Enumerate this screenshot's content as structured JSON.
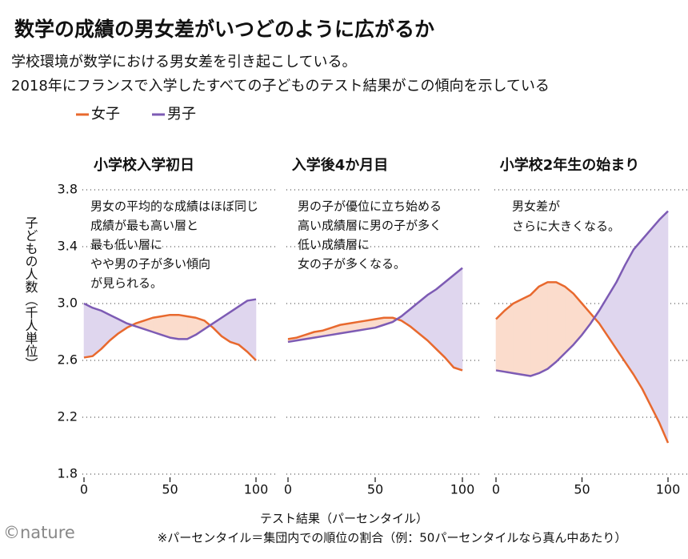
{
  "title": "数学の成績の男女差がいつどのように広がるか",
  "subtitle": [
    "学校環境が数学における男女差を引き起こしている。",
    "2018年にフランスで入学したすべての子どものテスト結果がこの傾向を示している"
  ],
  "y_label": "子どもの人数（千人単位）",
  "x_label": "テスト結果（パーセンタイル）",
  "footnote": "※パーセンタイル＝集団内での順位の割合（例：50パーセンタイルなら真ん中あたり）",
  "credit": "©nature",
  "chart_data": [
    {
      "type": "line",
      "title": "小学校入学初日",
      "annotation": [
        "男女の平均的な成績はほぼ同じ",
        "成績が最も高い層と",
        "最も低い層に",
        "やや男の子が多い傾向",
        "が見られる。"
      ],
      "x": [
        0,
        5,
        10,
        15,
        20,
        25,
        30,
        35,
        40,
        45,
        50,
        55,
        60,
        65,
        70,
        75,
        80,
        85,
        90,
        95,
        100
      ],
      "series": [
        {
          "name": "女子",
          "color": "#e8692e",
          "fill": "#fbdccc",
          "values": [
            2.62,
            2.63,
            2.68,
            2.74,
            2.79,
            2.83,
            2.86,
            2.88,
            2.9,
            2.91,
            2.92,
            2.92,
            2.91,
            2.9,
            2.88,
            2.83,
            2.77,
            2.73,
            2.71,
            2.66,
            2.6
          ]
        },
        {
          "name": "男子",
          "color": "#7d5bb4",
          "fill": "#dfd6ee",
          "values": [
            3.0,
            2.97,
            2.95,
            2.92,
            2.89,
            2.86,
            2.84,
            2.82,
            2.8,
            2.78,
            2.76,
            2.75,
            2.75,
            2.78,
            2.82,
            2.86,
            2.9,
            2.94,
            2.98,
            3.02,
            3.03
          ]
        }
      ],
      "xlim": [
        0,
        100
      ],
      "xticks": [
        0,
        50,
        100
      ],
      "ylim": [
        1.8,
        3.8
      ],
      "yticks": [
        1.8,
        2.2,
        2.6,
        {
          "value": 3,
          "label": "3.0"
        },
        3.4,
        3.8
      ],
      "grid": true
    },
    {
      "type": "line",
      "title": "入学後4か月目",
      "annotation": [
        "男の子が優位に立ち始める",
        "高い成績層に男の子が多く",
        "低い成績層に",
        "女の子が多くなる。"
      ],
      "x": [
        0,
        5,
        10,
        15,
        20,
        25,
        30,
        35,
        40,
        45,
        50,
        55,
        60,
        65,
        70,
        75,
        80,
        85,
        90,
        95,
        100
      ],
      "series": [
        {
          "color": "#e8692e",
          "fill": "#fbdccc",
          "values": [
            2.75,
            2.76,
            2.78,
            2.8,
            2.81,
            2.83,
            2.85,
            2.86,
            2.87,
            2.88,
            2.89,
            2.9,
            2.9,
            2.88,
            2.84,
            2.79,
            2.74,
            2.68,
            2.62,
            2.55,
            2.53
          ]
        },
        {
          "color": "#7d5bb4",
          "fill": "#dfd6ee",
          "values": [
            2.73,
            2.74,
            2.75,
            2.76,
            2.77,
            2.78,
            2.79,
            2.8,
            2.81,
            2.82,
            2.83,
            2.85,
            2.87,
            2.91,
            2.96,
            3.01,
            3.06,
            3.1,
            3.15,
            3.2,
            3.25
          ]
        }
      ],
      "xlim": [
        0,
        100
      ],
      "xticks": [
        0,
        50,
        100
      ],
      "ylim": [
        1.8,
        3.8
      ],
      "yticks": [
        1.8,
        2.2,
        2.6,
        3,
        3.4,
        3.8
      ],
      "grid": true
    },
    {
      "type": "line",
      "title": "小学校2年生の始まり",
      "annotation": [
        "男女差が",
        "さらに大きくなる。"
      ],
      "x": [
        0,
        5,
        10,
        15,
        20,
        25,
        30,
        35,
        40,
        45,
        50,
        55,
        60,
        65,
        70,
        75,
        80,
        85,
        90,
        95,
        100
      ],
      "series": [
        {
          "color": "#e8692e",
          "fill": "#fbdccc",
          "values": [
            2.89,
            2.95,
            3.0,
            3.03,
            3.06,
            3.12,
            3.15,
            3.15,
            3.12,
            3.07,
            3.0,
            2.93,
            2.86,
            2.77,
            2.68,
            2.59,
            2.5,
            2.4,
            2.28,
            2.16,
            2.02
          ]
        },
        {
          "color": "#7d5bb4",
          "fill": "#dfd6ee",
          "values": [
            2.53,
            2.52,
            2.51,
            2.5,
            2.49,
            2.51,
            2.54,
            2.59,
            2.65,
            2.71,
            2.78,
            2.86,
            2.95,
            3.05,
            3.15,
            3.27,
            3.38,
            3.45,
            3.52,
            3.59,
            3.65
          ]
        }
      ],
      "xlim": [
        0,
        100
      ],
      "xticks": [
        0,
        50,
        100
      ],
      "ylim": [
        1.8,
        3.8
      ],
      "yticks": [
        1.8,
        2.2,
        2.6,
        3,
        3.4,
        3.8
      ],
      "grid": true
    }
  ]
}
